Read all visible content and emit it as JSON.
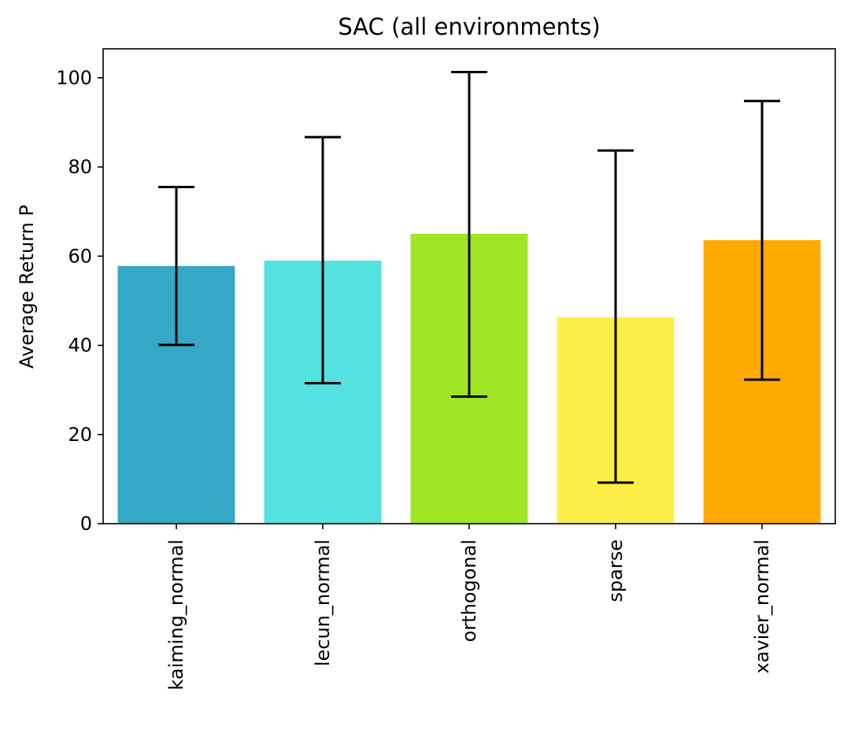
{
  "chart_data": {
    "type": "bar",
    "title": "SAC (all environments)",
    "xlabel": "",
    "ylabel": "Average Return P",
    "categories": [
      "kaiming_normal",
      "lecun_normal",
      "orthogonal",
      "sparse",
      "xavier_normal"
    ],
    "values": [
      57.8,
      59.0,
      65.0,
      46.3,
      63.6
    ],
    "error_low": [
      40.1,
      31.5,
      28.5,
      9.2,
      32.3
    ],
    "error_high": [
      75.5,
      86.7,
      101.3,
      83.7,
      94.8
    ],
    "colors": [
      "#34a8c6",
      "#53e2df",
      "#a1e625",
      "#fcee46",
      "#ffaa00"
    ],
    "ylim": [
      0,
      106.5
    ],
    "yticks": [
      0,
      20,
      40,
      60,
      80,
      100
    ],
    "grid": false,
    "legend": "none"
  }
}
